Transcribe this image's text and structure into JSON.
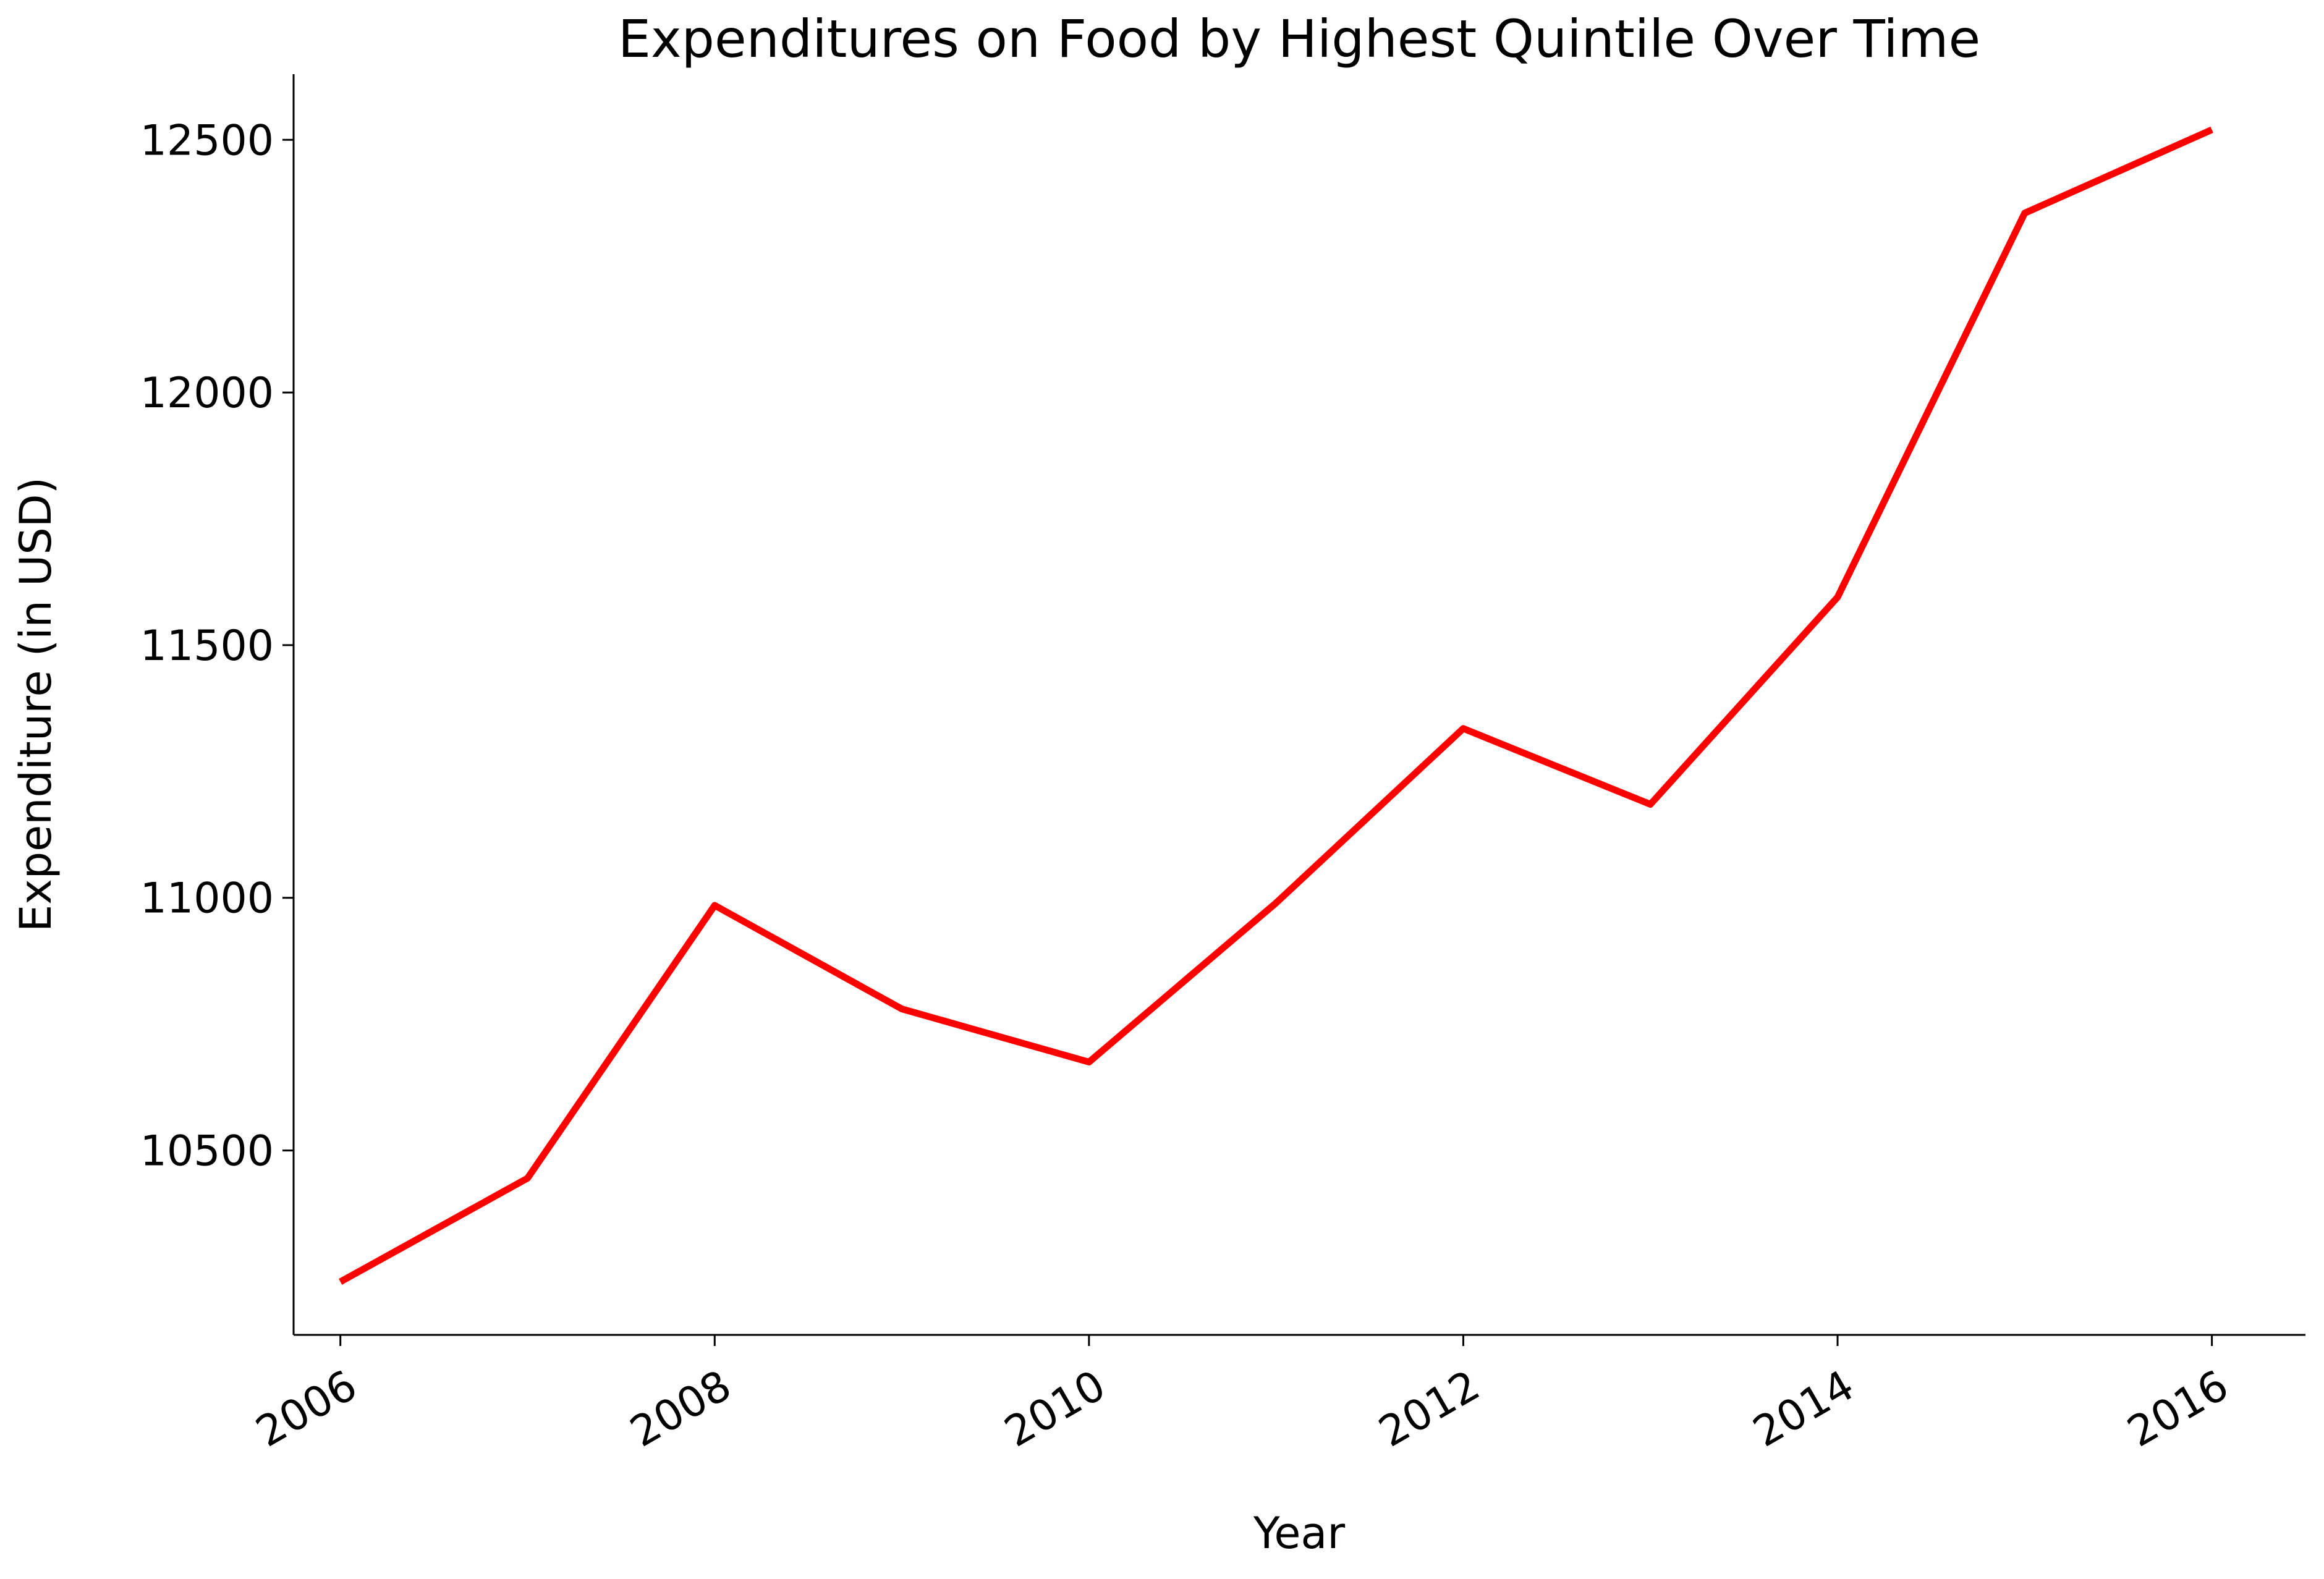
{
  "chart_data": {
    "type": "line",
    "title": "Expenditures on Food by Highest Quintile Over Time",
    "xlabel": "Year",
    "ylabel": "Expenditure (in USD)",
    "x": [
      2006,
      2007,
      2008,
      2009,
      2010,
      2011,
      2012,
      2013,
      2014,
      2015,
      2016
    ],
    "series": [
      {
        "values": [
          10240,
          10445,
          10985,
          10780,
          10675,
          10990,
          11335,
          11185,
          11595,
          12355,
          12520
        ],
        "color": "#ff0000"
      }
    ],
    "xticks": [
      "2006",
      "2008",
      "2010",
      "2012",
      "2014",
      "2016"
    ],
    "yticks": [
      "10500",
      "11000",
      "11500",
      "12000",
      "12500"
    ],
    "xlim": [
      2005.75,
      2016.5
    ],
    "ylim": [
      10135,
      12630
    ],
    "grid": false,
    "legend": "none"
  }
}
